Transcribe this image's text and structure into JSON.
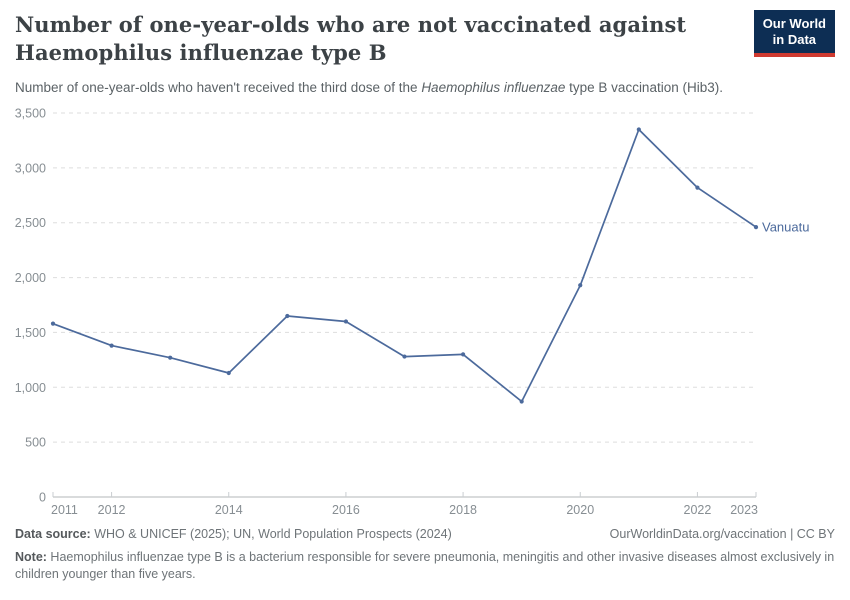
{
  "header": {
    "title_line1": "Number of one-year-olds who are not vaccinated against",
    "title_line2": "Haemophilus influenzae type B",
    "subtitle_pre": "Number of one-year-olds who haven't received the third dose of the ",
    "subtitle_italic": "Haemophilus influenzae",
    "subtitle_post": " type B vaccination (Hib3).",
    "logo": {
      "line1": "Our World",
      "line2": "in Data",
      "bg_color": "#0d2e54",
      "accent_color": "#cf3a30"
    }
  },
  "chart_data": {
    "type": "line",
    "title": "Number of one-year-olds who are not vaccinated against Haemophilus influenzae type B",
    "x": [
      2011,
      2012,
      2013,
      2014,
      2015,
      2016,
      2017,
      2018,
      2019,
      2020,
      2021,
      2022,
      2023
    ],
    "series": [
      {
        "name": "Vanuatu",
        "color": "#4c6a9c",
        "values": [
          1580,
          1380,
          1270,
          1130,
          1650,
          1600,
          1280,
          1300,
          870,
          1930,
          3350,
          2820,
          2460
        ]
      }
    ],
    "xlim": [
      2011,
      2023
    ],
    "ylim": [
      0,
      3500
    ],
    "y_ticks": [
      0,
      500,
      1000,
      1500,
      2000,
      2500,
      3000,
      3500
    ],
    "y_tick_labels": [
      "0",
      "500",
      "1,000",
      "1,500",
      "2,000",
      "2,500",
      "3,000",
      "3,500"
    ],
    "x_tick_years": [
      2011,
      2012,
      2014,
      2016,
      2018,
      2020,
      2022,
      2023
    ],
    "x_tick_labels": [
      "2011",
      "2012",
      "2014",
      "2016",
      "2018",
      "2020",
      "2022",
      "2023"
    ],
    "grid": "horizontal-dashed",
    "legend_position": "end-of-line-label",
    "grid_color": "#dddddd",
    "axis_color": "#b3b7ba",
    "tick_label_color": "#878e93"
  },
  "footer": {
    "data_source_label": "Data source:",
    "data_source_text": " WHO & UNICEF (2025); UN, World Population Prospects (2024)",
    "attribution": "OurWorldinData.org/vaccination | CC BY",
    "note_label": "Note:",
    "note_text": " Haemophilus influenzae type B is a bacterium responsible for severe pneumonia, meningitis and other invasive diseases almost exclusively in children younger than five years."
  }
}
